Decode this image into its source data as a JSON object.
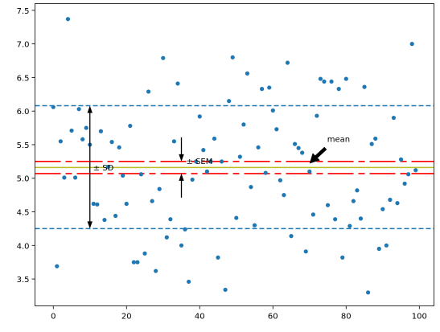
{
  "chart_data": {
    "type": "scatter",
    "title": "",
    "xlabel": "",
    "ylabel": "",
    "xlim": [
      -5,
      104
    ],
    "ylim": [
      3.1,
      7.6
    ],
    "xticks": [
      "0",
      "20",
      "40",
      "60",
      "80",
      "100"
    ],
    "yticks": [
      "3.5",
      "4.0",
      "4.5",
      "5.0",
      "5.5",
      "6.0",
      "6.5",
      "7.0",
      "7.5"
    ],
    "grid": false,
    "point_color": "#1f77b4",
    "x": [
      0,
      1,
      2,
      3,
      4,
      5,
      6,
      7,
      8,
      9,
      10,
      11,
      12,
      13,
      14,
      15,
      16,
      17,
      18,
      19,
      20,
      21,
      22,
      23,
      24,
      25,
      26,
      27,
      28,
      29,
      30,
      31,
      32,
      33,
      34,
      35,
      36,
      37,
      38,
      39,
      40,
      41,
      42,
      43,
      44,
      45,
      46,
      47,
      48,
      49,
      50,
      51,
      52,
      53,
      54,
      55,
      56,
      57,
      58,
      59,
      60,
      61,
      62,
      63,
      64,
      65,
      66,
      67,
      68,
      69,
      70,
      71,
      72,
      73,
      74,
      75,
      76,
      77,
      78,
      79,
      80,
      81,
      82,
      83,
      84,
      85,
      86,
      87,
      88,
      89,
      90,
      91,
      92,
      93,
      94,
      95,
      96,
      97,
      98,
      99
    ],
    "y": [
      6.06,
      3.69,
      5.55,
      5.01,
      7.37,
      5.71,
      5.01,
      6.03,
      5.58,
      5.75,
      5.5,
      4.62,
      4.61,
      5.7,
      4.38,
      5.17,
      5.54,
      4.44,
      5.46,
      5.04,
      4.62,
      5.78,
      3.75,
      3.75,
      5.06,
      3.88,
      6.29,
      4.66,
      3.62,
      4.84,
      6.79,
      4.12,
      4.39,
      5.55,
      6.41,
      4.0,
      4.24,
      3.46,
      4.98,
      5.25,
      5.92,
      5.42,
      5.1,
      5.25,
      5.59,
      3.82,
      5.25,
      3.34,
      6.15,
      6.8,
      4.41,
      5.32,
      5.8,
      6.56,
      4.87,
      4.3,
      5.46,
      6.33,
      5.08,
      6.35,
      6.01,
      5.73,
      4.97,
      4.75,
      6.72,
      4.14,
      5.51,
      5.45,
      5.38,
      3.91,
      5.1,
      4.46,
      5.93,
      6.48,
      6.44,
      4.6,
      6.44,
      4.39,
      6.33,
      3.82,
      6.48,
      4.29,
      4.66,
      4.82,
      4.4,
      6.36,
      3.3,
      5.51,
      5.59,
      3.95,
      4.54,
      4.0,
      4.68,
      5.9,
      4.63,
      5.28,
      4.92,
      5.06,
      7.0,
      5.12
    ],
    "reference_lines": {
      "mean": {
        "value": 5.16,
        "color": "#bcbd22"
      },
      "sd_band": {
        "upper": 6.08,
        "lower": 4.25,
        "color": "#1f77b4",
        "style": "dashed"
      },
      "sem_band": {
        "upper": 5.25,
        "lower": 5.07,
        "color": "#ff0000",
        "style": "long-dashed"
      }
    },
    "annotations": [
      {
        "label": "± SD",
        "x": 10,
        "from": 4.25,
        "to": 6.08
      },
      {
        "label": "± SEM",
        "x": 35,
        "from": 5.07,
        "to": 5.25
      },
      {
        "label": "mean",
        "x": 70,
        "y": 5.16
      }
    ]
  }
}
